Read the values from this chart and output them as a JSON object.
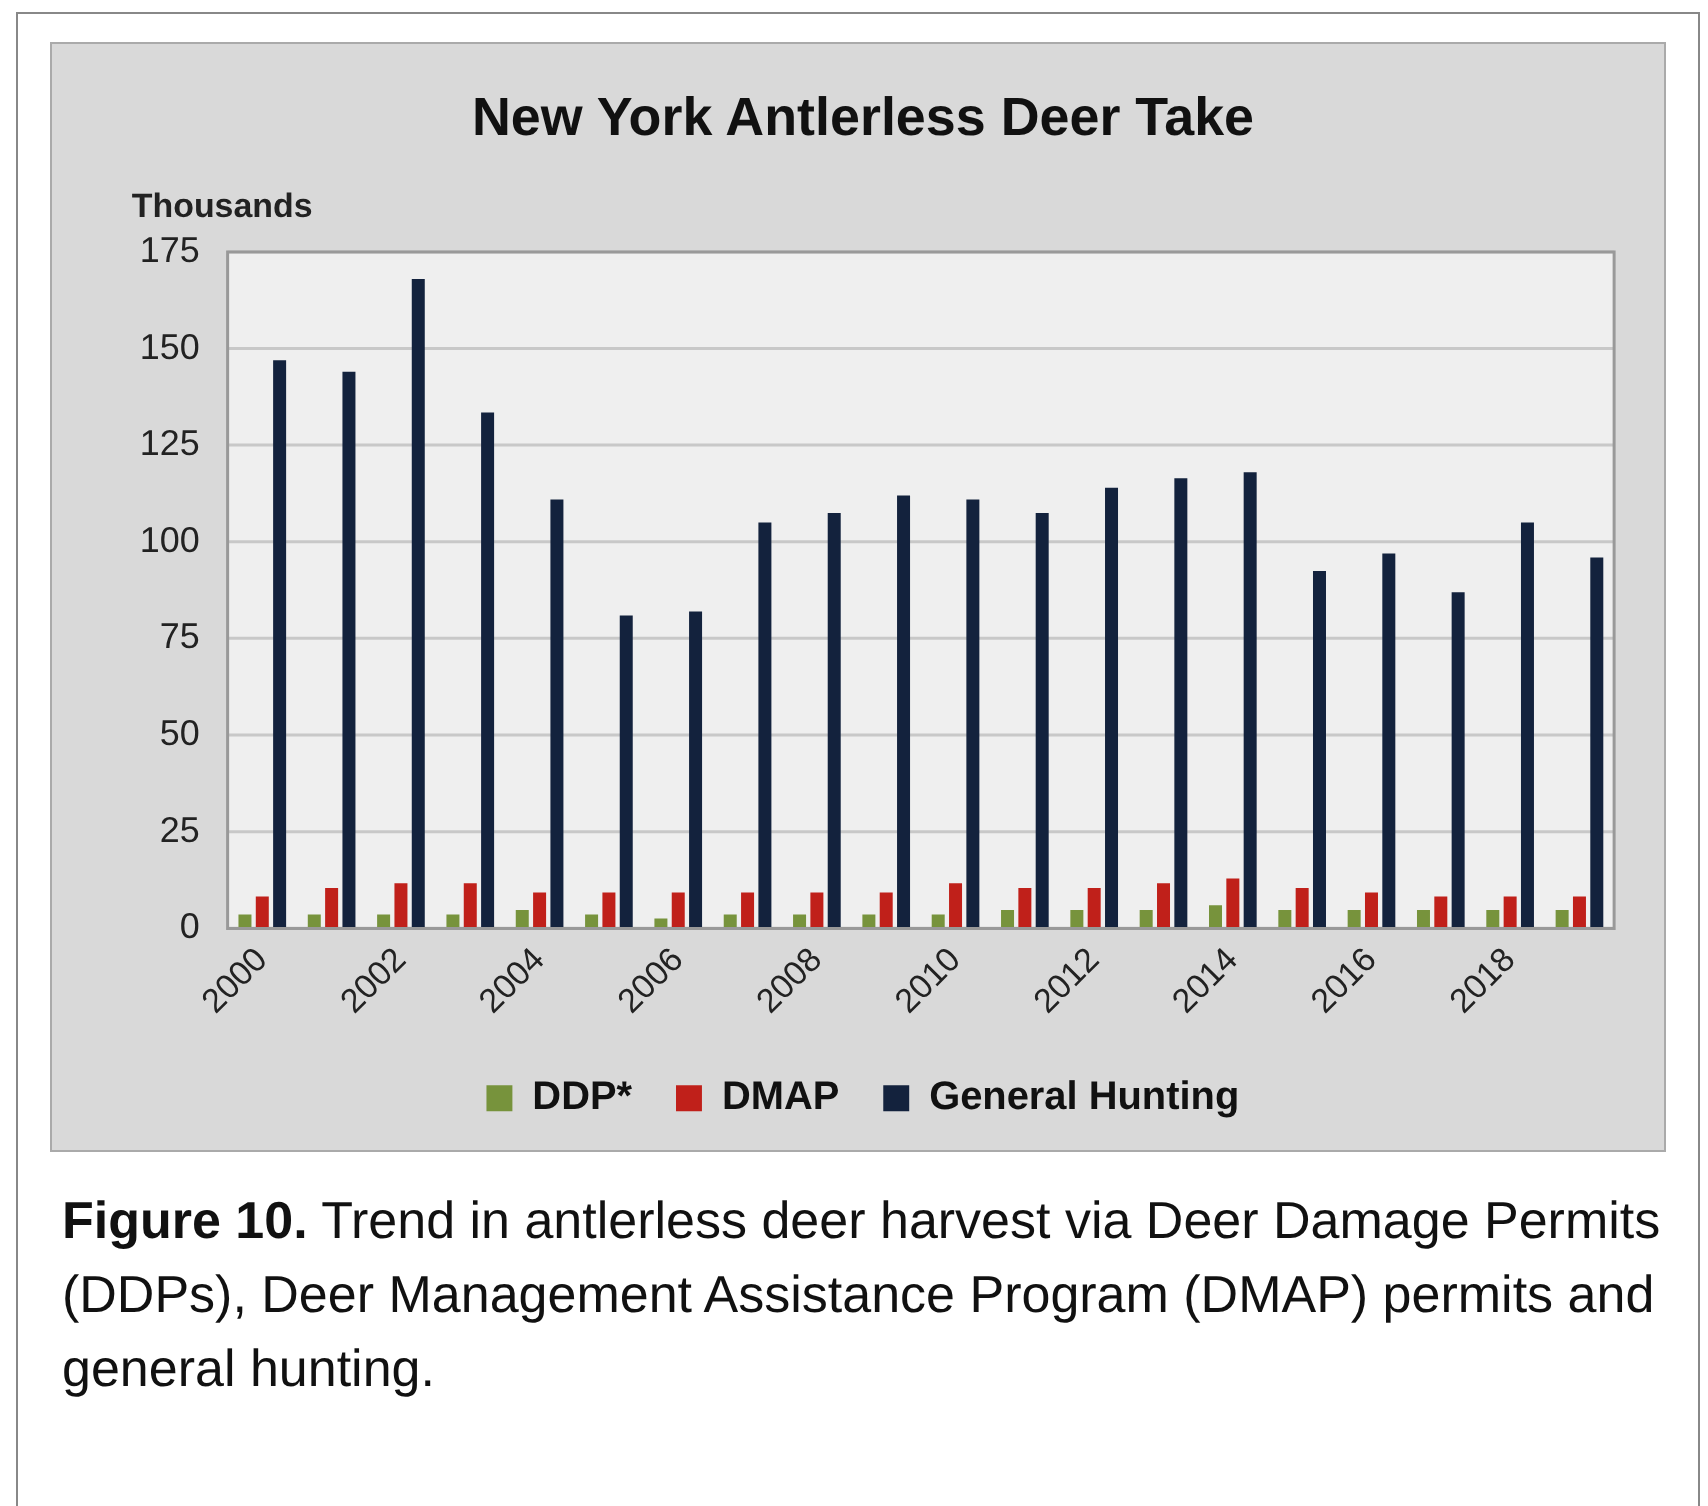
{
  "chart_data": {
    "type": "bar",
    "title": "New York Antlerless Deer Take",
    "ylabel": "Thousands",
    "categories": [
      "2000",
      null,
      "2002",
      null,
      "2004",
      null,
      "2006",
      null,
      "2008",
      null,
      "2010",
      null,
      "2012",
      null,
      "2014",
      null,
      "2016",
      null,
      "2018",
      null
    ],
    "series": [
      {
        "name": "DDP*",
        "color": "#77933c",
        "values": [
          3.6,
          3.6,
          3.6,
          3.6,
          4.8,
          3.6,
          2.6,
          3.6,
          3.6,
          3.6,
          3.6,
          4.8,
          4.8,
          4.8,
          6,
          4.8,
          4.8,
          4.8,
          4.8,
          4.8
        ]
      },
      {
        "name": "DMAP",
        "color": "#c0201a",
        "values": [
          8.3,
          10.5,
          11.7,
          11.7,
          9.3,
          9.3,
          9.3,
          9.3,
          9.3,
          9.3,
          11.7,
          10.5,
          10.5,
          11.7,
          12.9,
          10.5,
          9.3,
          8.3,
          8.3,
          8.3
        ]
      },
      {
        "name": "General Hunting",
        "color": "#13223d",
        "values": [
          147,
          144,
          168,
          133.5,
          111,
          81,
          82,
          105,
          107.5,
          112,
          111,
          107.5,
          114,
          116.5,
          118,
          92.5,
          97,
          87,
          105,
          96
        ]
      }
    ],
    "ylim": [
      0,
      175
    ],
    "yticks": [
      0,
      25,
      50,
      75,
      100,
      125,
      150,
      175
    ],
    "grid": "y",
    "legend": "bottom",
    "annotations": [
      "Figure 10. Trend in antlerless deer harvest via Deer Damage Permits (DDPs), Deer Management Assistance Program (DMAP) permits and general hunting."
    ]
  }
}
